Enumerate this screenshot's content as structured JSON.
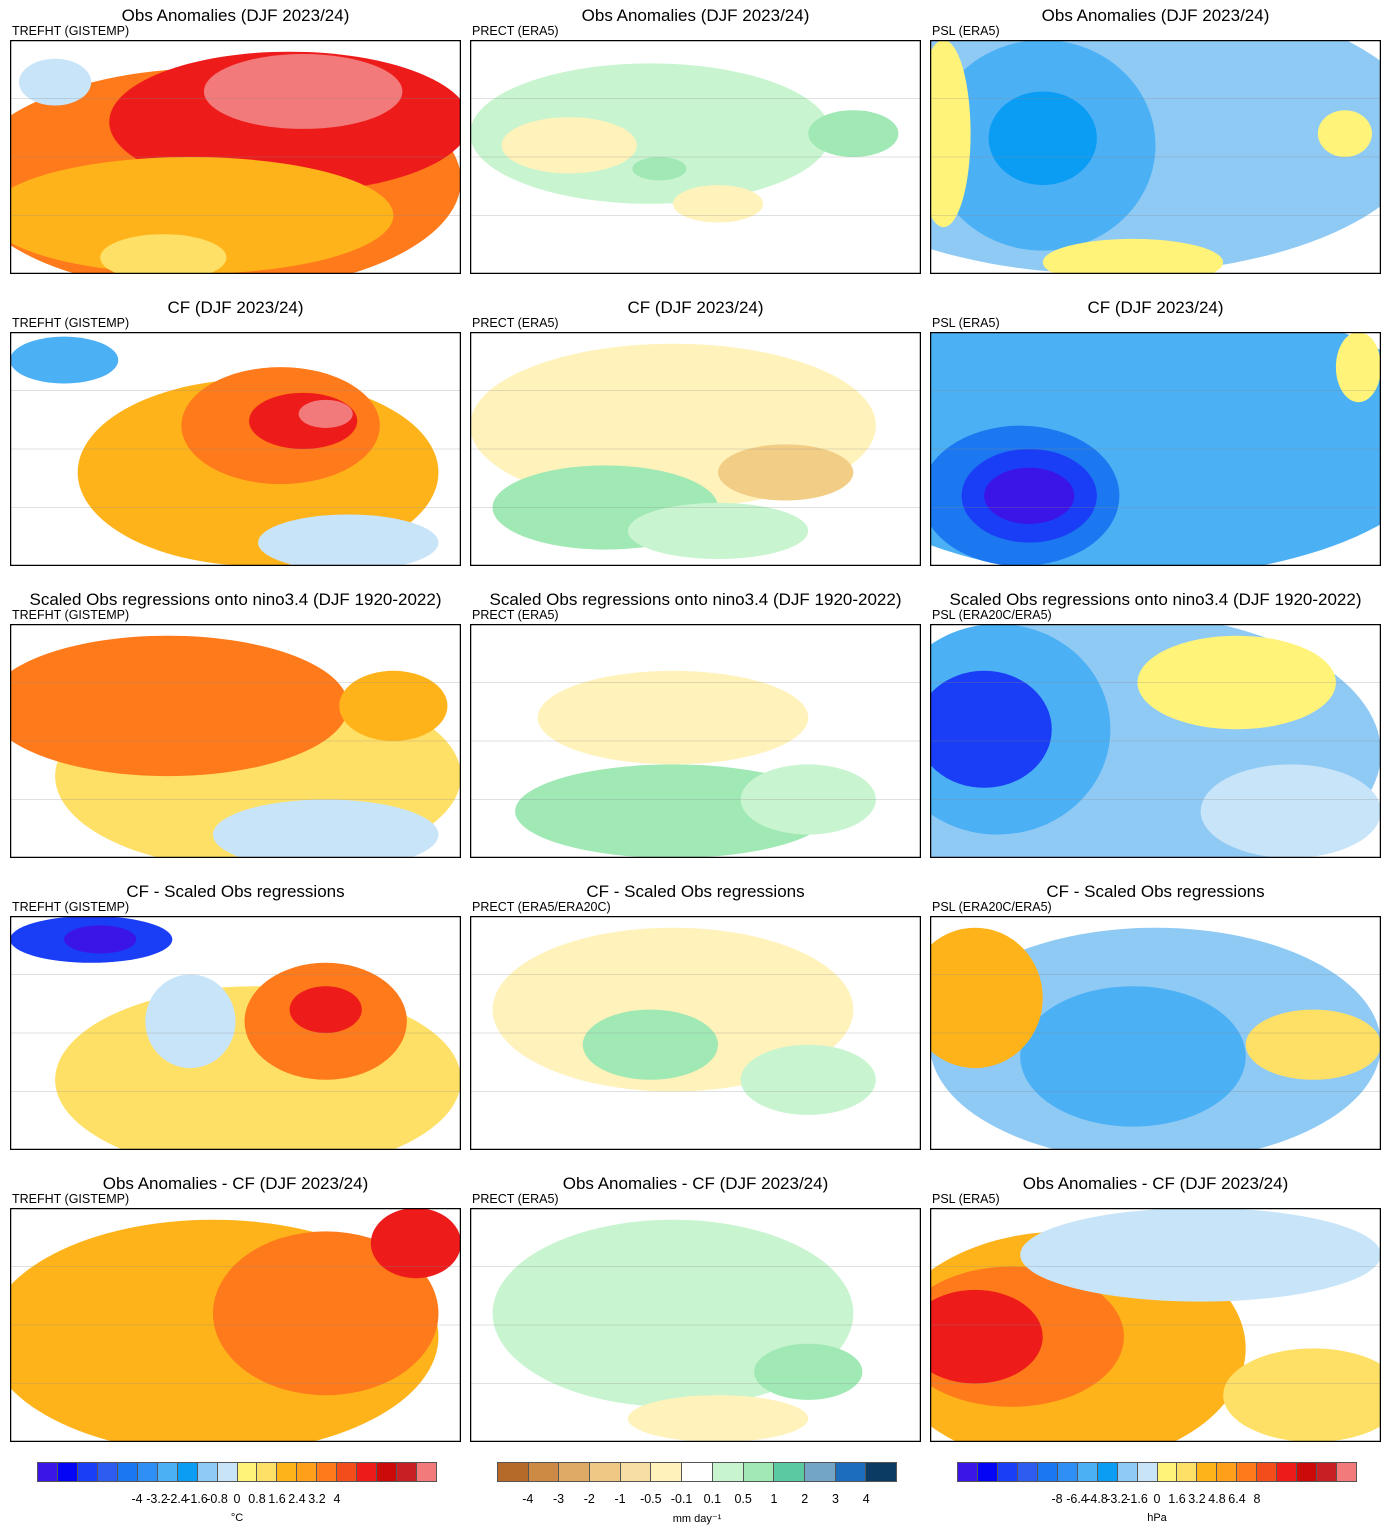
{
  "rows": [
    {
      "title": "Obs Anomalies (DJF 2023/24)",
      "panels": [
        {
          "sub": "TREFHT (GISTEMP)",
          "blobs": [
            [
              "#ff7a1a",
              45,
              60,
              55,
              48
            ],
            [
              "#ee1b1b",
              62,
              35,
              40,
              30
            ],
            [
              "#f37a7a",
              65,
              22,
              22,
              16
            ],
            [
              "#ffb31a",
              40,
              75,
              45,
              25
            ],
            [
              "#ffe066",
              34,
              93,
              14,
              10
            ],
            [
              "#c8e4f8",
              10,
              18,
              8,
              10
            ]
          ]
        },
        {
          "sub": "PRECT (ERA5)",
          "blobs": [
            [
              "#c8f5cf",
              40,
              40,
              40,
              30
            ],
            [
              "#fff2bb",
              22,
              45,
              15,
              12
            ],
            [
              "#fff2bb",
              55,
              70,
              10,
              8
            ],
            [
              "#a0e8b4",
              42,
              55,
              6,
              5
            ],
            [
              "#a0e8b4",
              85,
              40,
              10,
              10
            ]
          ]
        },
        {
          "sub": "PSL (ERA5)",
          "blobs": [
            [
              "#8fcaf5",
              40,
              40,
              70,
              60
            ],
            [
              "#4cb0f5",
              25,
              45,
              25,
              45
            ],
            [
              "#0b9cf3",
              25,
              42,
              12,
              20
            ],
            [
              "#fff37a",
              3,
              40,
              6,
              40
            ],
            [
              "#fff37a",
              45,
              95,
              20,
              10
            ],
            [
              "#fff37a",
              92,
              40,
              6,
              10
            ]
          ]
        }
      ]
    },
    {
      "title": "CF (DJF 2023/24)",
      "panels": [
        {
          "sub": "TREFHT (GISTEMP)",
          "blobs": [
            [
              "#ffb31a",
              55,
              60,
              40,
              40
            ],
            [
              "#ff7a1a",
              60,
              40,
              22,
              25
            ],
            [
              "#ee1b1b",
              65,
              38,
              12,
              12
            ],
            [
              "#f37a7a",
              70,
              35,
              6,
              6
            ],
            [
              "#c8e4f8",
              75,
              90,
              20,
              12
            ],
            [
              "#4cb0f5",
              12,
              12,
              12,
              10
            ]
          ]
        },
        {
          "sub": "PRECT (ERA5)",
          "blobs": [
            [
              "#fff2bb",
              45,
              40,
              45,
              35
            ],
            [
              "#f2cd85",
              70,
              60,
              15,
              12
            ],
            [
              "#a0e8b4",
              30,
              75,
              25,
              18
            ],
            [
              "#c8f5cf",
              55,
              85,
              20,
              12
            ]
          ]
        },
        {
          "sub": "PSL (ERA5)",
          "blobs": [
            [
              "#4cb0f5",
              45,
              45,
              70,
              60
            ],
            [
              "#1c78f0",
              20,
              70,
              22,
              30
            ],
            [
              "#1a3ef5",
              22,
              70,
              15,
              20
            ],
            [
              "#3b14e8",
              22,
              70,
              10,
              12
            ],
            [
              "#fff37a",
              95,
              15,
              5,
              15
            ]
          ]
        }
      ]
    },
    {
      "title": "Scaled Obs regressions onto nino3.4 (DJF 1920-2022)",
      "panels": [
        {
          "sub": "TREFHT (GISTEMP)",
          "blobs": [
            [
              "#ffe066",
              55,
              65,
              45,
              40
            ],
            [
              "#ff7a1a",
              35,
              35,
              40,
              30
            ],
            [
              "#c8e4f8",
              70,
              90,
              25,
              15
            ],
            [
              "#ffb31a",
              85,
              35,
              12,
              15
            ]
          ]
        },
        {
          "sub": "PRECT (ERA5)",
          "blobs": [
            [
              "#fff2bb",
              45,
              40,
              30,
              20
            ],
            [
              "#a0e8b4",
              45,
              80,
              35,
              20
            ],
            [
              "#c8f5cf",
              75,
              75,
              15,
              15
            ]
          ]
        },
        {
          "sub": "PSL (ERA20C/ERA5)",
          "blobs": [
            [
              "#8fcaf5",
              40,
              55,
              60,
              60
            ],
            [
              "#4cb0f5",
              15,
              45,
              25,
              45
            ],
            [
              "#1a3ef5",
              12,
              45,
              15,
              25
            ],
            [
              "#fff37a",
              68,
              25,
              22,
              20
            ],
            [
              "#c8e4f8",
              80,
              80,
              20,
              20
            ]
          ]
        }
      ]
    },
    {
      "title": "CF - Scaled Obs regressions",
      "panels": [
        {
          "sub": "TREFHT (GISTEMP)",
          "blobs": [
            [
              "#ffe066",
              55,
              70,
              45,
              40
            ],
            [
              "#ff7a1a",
              70,
              45,
              18,
              25
            ],
            [
              "#ee1b1b",
              70,
              40,
              8,
              10
            ],
            [
              "#1a3ef5",
              18,
              10,
              18,
              10
            ],
            [
              "#3b14e8",
              20,
              10,
              8,
              6
            ],
            [
              "#c8e4f8",
              40,
              45,
              10,
              20
            ]
          ]
        },
        {
          "sub": "PRECT (ERA5/ERA20C)",
          "blobs": [
            [
              "#fff2bb",
              45,
              40,
              40,
              35
            ],
            [
              "#a0e8b4",
              40,
              55,
              15,
              15
            ],
            [
              "#c8f5cf",
              75,
              70,
              15,
              15
            ]
          ]
        },
        {
          "sub": "PSL (ERA20C/ERA5)",
          "blobs": [
            [
              "#8fcaf5",
              50,
              55,
              50,
              50
            ],
            [
              "#4cb0f5",
              45,
              60,
              25,
              30
            ],
            [
              "#ffb31a",
              10,
              35,
              15,
              30
            ],
            [
              "#ffe066",
              85,
              55,
              15,
              15
            ]
          ]
        }
      ]
    },
    {
      "title": "Obs Anomalies - CF (DJF 2023/24)",
      "panels": [
        {
          "sub": "TREFHT (GISTEMP)",
          "blobs": [
            [
              "#ffb31a",
              45,
              55,
              50,
              50
            ],
            [
              "#ff7a1a",
              70,
              45,
              25,
              35
            ],
            [
              "#ee1b1b",
              90,
              15,
              10,
              15
            ]
          ]
        },
        {
          "sub": "PRECT (ERA5)",
          "blobs": [
            [
              "#c8f5cf",
              45,
              45,
              40,
              40
            ],
            [
              "#a0e8b4",
              75,
              70,
              12,
              12
            ],
            [
              "#fff2bb",
              55,
              90,
              20,
              10
            ]
          ]
        },
        {
          "sub": "PSL (ERA5)",
          "blobs": [
            [
              "#ffb31a",
              30,
              60,
              40,
              50
            ],
            [
              "#ff7a1a",
              18,
              55,
              25,
              30
            ],
            [
              "#ee1b1b",
              10,
              55,
              15,
              20
            ],
            [
              "#c8e4f8",
              60,
              20,
              40,
              20
            ],
            [
              "#ffe066",
              85,
              80,
              20,
              20
            ]
          ]
        }
      ]
    }
  ],
  "colorbars": [
    {
      "colors": [
        "#3b14e8",
        "#0505f5",
        "#1a3ef5",
        "#2f5cf0",
        "#1c78f0",
        "#2f8ff5",
        "#4cb0f5",
        "#0b9cf3",
        "#8fcaf5",
        "#c8e4f8",
        "#fff37a",
        "#ffe066",
        "#ffb31a",
        "#ff9f1a",
        "#ff7a1a",
        "#f24d1a",
        "#ee1b1b",
        "#cc0a0a",
        "#c81f24",
        "#f37a7a"
      ],
      "ticks": [
        "-4",
        "-3.2",
        "-2.4",
        "-1.6",
        "-0.8",
        "0",
        "0.8",
        "1.6",
        "2.4",
        "3.2",
        "4"
      ],
      "unit": "°C"
    },
    {
      "colors": [
        "#b56a2a",
        "#cc8a45",
        "#dfa966",
        "#efc886",
        "#f6dea4",
        "#fff2bb",
        "#ffffff",
        "#c8f5cf",
        "#a0e8b4",
        "#5bc9a1",
        "#73a6c6",
        "#1c6dbd",
        "#0b3a63"
      ],
      "ticks": [
        "-4",
        "-3",
        "-2",
        "-1",
        "-0.5",
        "-0.1",
        "0.1",
        "0.5",
        "1",
        "2",
        "3",
        "4"
      ],
      "unit": "mm day⁻¹"
    },
    {
      "colors": [
        "#3b14e8",
        "#0505f5",
        "#1a3ef5",
        "#2f5cf0",
        "#1c78f0",
        "#2f8ff5",
        "#4cb0f5",
        "#0b9cf3",
        "#8fcaf5",
        "#c8e4f8",
        "#fff37a",
        "#ffe066",
        "#ffb31a",
        "#ff9f1a",
        "#ff7a1a",
        "#f24d1a",
        "#ee1b1b",
        "#cc0a0a",
        "#c81f24",
        "#f37a7a"
      ],
      "ticks": [
        "-8",
        "-6.4",
        "-4.8",
        "-3.2",
        "-1.6",
        "0",
        "1.6",
        "3.2",
        "4.8",
        "6.4",
        "8"
      ],
      "unit": "hPa"
    }
  ]
}
